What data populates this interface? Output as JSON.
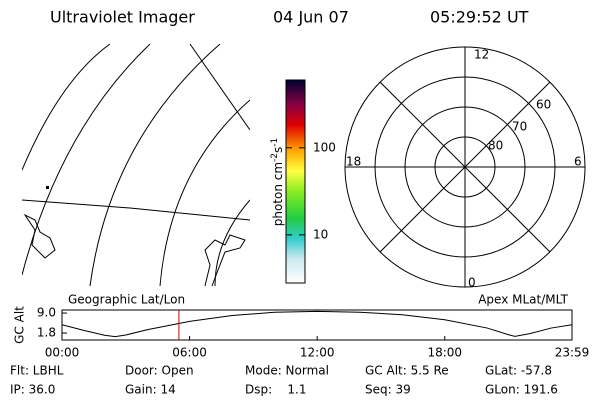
{
  "header": {
    "title": "Ultraviolet Imager",
    "date": "04 Jun 07",
    "time": "05:29:52 UT"
  },
  "colorbar": {
    "label": "photon cm",
    "exp1": "-2",
    "unit2": "s",
    "exp2": "-1",
    "log": true,
    "clim": [
      2.8,
      600
    ],
    "ticks": [
      10,
      100
    ]
  },
  "polar": {
    "mlt_labels": [
      "12",
      "6",
      "0",
      "18"
    ],
    "lat_labels": [
      "80",
      "70",
      "60"
    ]
  },
  "chart_data": {
    "type": "line",
    "left_label": "Geographic Lat/Lon",
    "right_label": "Apex MLat/MLT",
    "ylabel": "GC Alt",
    "x": [
      0,
      1,
      2,
      2.5,
      3,
      4,
      6,
      8,
      10,
      12,
      14,
      16,
      18,
      20,
      21,
      21.3,
      22,
      23,
      23.98
    ],
    "series": [
      {
        "color": "#000000",
        "values": [
          4.8,
          2.8,
          1.0,
          0.5,
          1.1,
          3.0,
          6.0,
          8.1,
          9.3,
          9.6,
          9.3,
          8.4,
          6.6,
          3.6,
          1.2,
          0.6,
          1.6,
          3.6,
          4.8
        ]
      }
    ],
    "marker_x": 5.498,
    "marker_color": "#cc0000",
    "xlim": [
      0,
      23.983
    ],
    "xticks": [
      {
        "value": 0,
        "label": "00:00"
      },
      {
        "value": 6,
        "label": "06:00"
      },
      {
        "value": 12,
        "label": "12:00"
      },
      {
        "value": 18,
        "label": "18:00"
      },
      {
        "value": 23.983,
        "label": "23:59"
      }
    ],
    "ylim": [
      -0.7,
      10.1
    ],
    "yticks": [
      {
        "value": 9.0,
        "label": "9.0"
      },
      1.8
    ]
  },
  "footer": {
    "rows": [
      [
        "Flt: LBHL",
        "Door: Open",
        "Mode: Normal",
        "GC Alt: 5.5 Re",
        "GLat: -57.8"
      ],
      [
        "IP: 36.0",
        "Gain: 14",
        "Dsp:    1.1",
        "Seq: 39",
        "GLon: 191.6"
      ]
    ]
  }
}
